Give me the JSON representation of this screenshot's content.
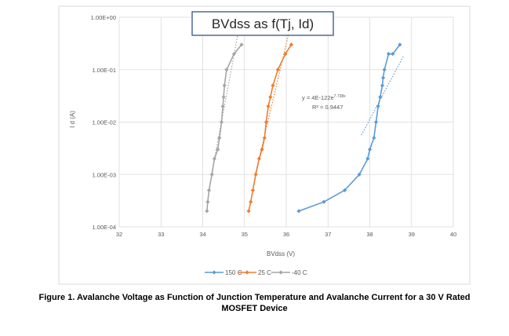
{
  "chart_data": {
    "type": "scatter",
    "title": "BVdss as f(Tj, Id)",
    "xlabel": "BVdss (V)",
    "ylabel": "I d (A)",
    "xlim": [
      32,
      40
    ],
    "ylim": [
      0.0001,
      1
    ],
    "y_scale": "log",
    "grid": true,
    "legend_position": "bottom",
    "x_ticks": [
      "32",
      "33",
      "34",
      "35",
      "36",
      "37",
      "38",
      "39",
      "40"
    ],
    "y_ticks": [
      "1.00E-04",
      "1.00E-03",
      "1.00E-02",
      "1.00E-01",
      "1.00E+00"
    ],
    "series": [
      {
        "name": "150 C",
        "color": "#5b9bd5",
        "marker": "diamond",
        "x": [
          36.3,
          36.9,
          37.4,
          37.75,
          37.95,
          38.0,
          38.1,
          38.15,
          38.2,
          38.25,
          38.3,
          38.32,
          38.35,
          38.45,
          38.55,
          38.72
        ],
        "y": [
          0.0002,
          0.0003,
          0.0005,
          0.001,
          0.002,
          0.003,
          0.005,
          0.01,
          0.02,
          0.03,
          0.05,
          0.07,
          0.1,
          0.2,
          0.2,
          0.3
        ]
      },
      {
        "name": "25 C",
        "color": "#ed7d31",
        "marker": "diamond",
        "x": [
          35.1,
          35.15,
          35.2,
          35.27,
          35.35,
          35.42,
          35.48,
          35.52,
          35.57,
          35.62,
          35.68,
          35.8,
          35.98,
          36.12
        ],
        "y": [
          0.0002,
          0.0003,
          0.0005,
          0.001,
          0.002,
          0.003,
          0.005,
          0.01,
          0.02,
          0.03,
          0.05,
          0.1,
          0.2,
          0.3
        ]
      },
      {
        "name": "-40 C",
        "color": "#a5a5a5",
        "marker": "diamond",
        "x": [
          34.1,
          34.12,
          34.15,
          34.22,
          34.28,
          34.36,
          34.4,
          34.45,
          34.48,
          34.5,
          34.52,
          34.57,
          34.75,
          34.93
        ],
        "y": [
          0.0002,
          0.0003,
          0.0005,
          0.001,
          0.002,
          0.003,
          0.005,
          0.01,
          0.02,
          0.03,
          0.05,
          0.1,
          0.2,
          0.3
        ]
      }
    ],
    "trendlines": [
      {
        "series": "150 C",
        "type": "exponential",
        "color": "#5b9bd5",
        "x_range": [
          37.8,
          38.8
        ]
      },
      {
        "series": "25 C",
        "type": "exponential",
        "color": "#ed7d31",
        "x_range": [
          35.27,
          36.06
        ]
      },
      {
        "series": "-40 C",
        "type": "exponential",
        "color": "#a5a5a5",
        "x_range": [
          34.22,
          34.98
        ]
      }
    ],
    "annotations": [
      {
        "text_base": "y = 4E-122e",
        "text_sup": "7.738x"
      },
      {
        "text": "R² = 0.9447"
      }
    ]
  },
  "caption": {
    "line1": "Figure 1. Avalanche Voltage as Function of Junction Temperature and Avalanche Current for a 30 V Rated",
    "line2": "MOSFET Device"
  }
}
